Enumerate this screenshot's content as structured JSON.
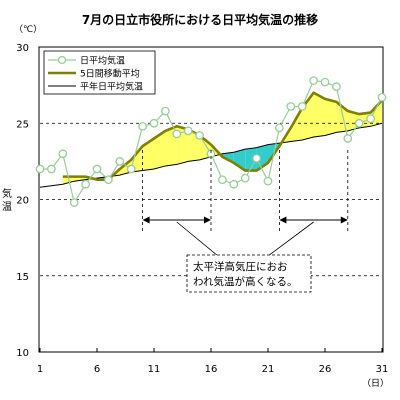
{
  "chart_data": {
    "type": "line",
    "title": "7月の日立市役所における日平均気温の推移",
    "ylabel": "気温",
    "yunit": "（℃）",
    "xunit": "（日）",
    "xlim": [
      1,
      31
    ],
    "ylim": [
      10,
      30
    ],
    "x_ticks": [
      1,
      6,
      11,
      16,
      21,
      26,
      31
    ],
    "x_tick_labels": [
      "1",
      "6",
      "11",
      "16",
      "21",
      "26",
      "31"
    ],
    "y_ticks": [
      10,
      15,
      20,
      25,
      30
    ],
    "y_tick_labels": [
      "10",
      "15",
      "20",
      "25",
      "30"
    ],
    "grid": "horizontal dashed",
    "legend_position": "top-left",
    "x": [
      1,
      2,
      3,
      4,
      5,
      6,
      7,
      8,
      9,
      10,
      11,
      12,
      13,
      14,
      15,
      16,
      17,
      18,
      19,
      20,
      21,
      22,
      23,
      24,
      25,
      26,
      27,
      28,
      29,
      30,
      31
    ],
    "series": [
      {
        "name": "日平均気温",
        "color": "#99cc99",
        "marker": "circle",
        "values": [
          22.0,
          22.0,
          23.0,
          19.8,
          21.0,
          22.0,
          21.3,
          22.5,
          22.0,
          24.8,
          25.0,
          25.8,
          24.3,
          24.5,
          24.2,
          23.0,
          21.3,
          21.0,
          21.4,
          22.7,
          21.2,
          24.7,
          26.1,
          26.1,
          27.8,
          27.7,
          27.4,
          24.0,
          25.0,
          25.3,
          26.7
        ]
      },
      {
        "name": "5日間移動平均",
        "color": "#808000",
        "values": [
          null,
          null,
          21.5,
          21.5,
          21.5,
          21.3,
          21.3,
          22.0,
          22.6,
          23.5,
          24.0,
          24.5,
          24.8,
          24.6,
          24.2,
          23.6,
          22.8,
          22.4,
          21.9,
          21.9,
          22.4,
          23.5,
          24.7,
          26.0,
          27.0,
          26.6,
          26.4,
          25.8,
          25.6,
          25.7,
          26.5
        ]
      },
      {
        "name": "平年日平均気温",
        "color": "#000000",
        "values": [
          20.8,
          20.9,
          21.0,
          21.2,
          21.3,
          21.4,
          21.5,
          21.6,
          21.8,
          21.9,
          22.0,
          22.2,
          22.3,
          22.5,
          22.6,
          22.8,
          23.0,
          23.1,
          23.3,
          23.4,
          23.6,
          23.7,
          23.8,
          23.9,
          24.1,
          24.2,
          24.4,
          24.5,
          24.7,
          24.8,
          25.0
        ]
      }
    ],
    "fill_above_color": "#ffff66",
    "fill_below_color": "#33cccc",
    "annotation": {
      "lines": [
        "太平洋高気圧におお",
        "われ気温が高くなる。"
      ],
      "spans": [
        [
          10,
          16
        ],
        [
          22,
          28
        ]
      ]
    }
  }
}
